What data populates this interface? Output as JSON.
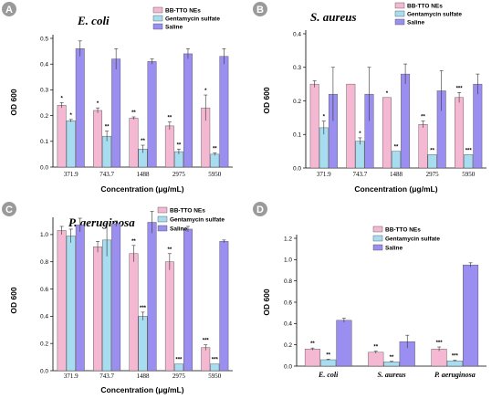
{
  "colors": {
    "series": [
      "#f5b8d2",
      "#a7dcf1",
      "#9a8ff0"
    ],
    "bar_stroke": "#444444",
    "letter_badge": "#9a9a9a"
  },
  "chart_data": [
    {
      "type": "bar",
      "panel_label": "A",
      "title": "E. coli",
      "xlabel": "Concentration (μg/mL)",
      "ylabel": "OD 600",
      "categories": [
        "371.9",
        "743.7",
        "1488",
        "2975",
        "5950"
      ],
      "ylim": [
        0,
        0.5
      ],
      "yticks": [
        "0.0",
        "0.1",
        "0.2",
        "0.3",
        "0.4",
        "0.5"
      ],
      "ytick_values": [
        0,
        0.1,
        0.2,
        0.3,
        0.4,
        0.5
      ],
      "legend_position": "top-right",
      "series": [
        {
          "name": "BB-TTO NEs",
          "values": [
            0.24,
            0.22,
            0.19,
            0.16,
            0.23
          ],
          "errors": [
            0.01,
            0.01,
            0.005,
            0.015,
            0.05
          ],
          "sig": [
            "*",
            "*",
            "**",
            "**",
            "*"
          ]
        },
        {
          "name": "Gentamycin sulfate",
          "values": [
            0.18,
            0.12,
            0.07,
            0.06,
            0.05
          ],
          "errors": [
            0.005,
            0.02,
            0.015,
            0.01,
            0.005
          ],
          "sig": [
            "*",
            "**",
            "**",
            "**",
            "**"
          ]
        },
        {
          "name": "Saline",
          "values": [
            0.46,
            0.42,
            0.41,
            0.44,
            0.43
          ],
          "errors": [
            0.03,
            0.04,
            0.01,
            0.02,
            0.03
          ],
          "sig": [
            "",
            "",
            "",
            "",
            ""
          ]
        }
      ]
    },
    {
      "type": "bar",
      "panel_label": "B",
      "title": "S. aureus",
      "xlabel": "Concentration (μg/mL)",
      "ylabel": "OD 600",
      "categories": [
        "371.9",
        "743.7",
        "1488",
        "2975",
        "5950"
      ],
      "ylim": [
        0,
        0.4
      ],
      "yticks": [
        "0.0",
        "0.1",
        "0.2",
        "0.3",
        "0.4"
      ],
      "ytick_values": [
        0,
        0.1,
        0.2,
        0.3,
        0.4
      ],
      "legend_position": "top-right",
      "series": [
        {
          "name": "BB-TTO NEs",
          "values": [
            0.25,
            0.25,
            0.21,
            0.13,
            0.21
          ],
          "errors": [
            0.01,
            0.0,
            0.0,
            0.01,
            0.015
          ],
          "sig": [
            "",
            "",
            "*",
            "**",
            "***"
          ]
        },
        {
          "name": "Gentamycin sulfate",
          "values": [
            0.12,
            0.08,
            0.05,
            0.04,
            0.04
          ],
          "errors": [
            0.02,
            0.01,
            0.0,
            0.0,
            0.0
          ],
          "sig": [
            "*",
            "*",
            "**",
            "**",
            "***"
          ]
        },
        {
          "name": "Saline",
          "values": [
            0.22,
            0.22,
            0.28,
            0.23,
            0.25
          ],
          "errors": [
            0.08,
            0.08,
            0.03,
            0.06,
            0.03
          ],
          "sig": [
            "",
            "",
            "",
            "",
            ""
          ]
        }
      ]
    },
    {
      "type": "bar",
      "panel_label": "C",
      "title": "P. aeruginosa",
      "xlabel": "Concentration (μg/mL)",
      "ylabel": "OD 600",
      "categories": [
        "371.9",
        "743.7",
        "1488",
        "2975",
        "5950"
      ],
      "ylim": [
        0,
        1.1
      ],
      "yticks": [
        "0.0",
        "0.2",
        "0.4",
        "0.6",
        "0.8",
        "1.0"
      ],
      "ytick_values": [
        0,
        0.2,
        0.4,
        0.6,
        0.8,
        1.0
      ],
      "legend_position": "top-right",
      "series": [
        {
          "name": "BB-TTO NEs",
          "values": [
            1.03,
            0.91,
            0.86,
            0.8,
            0.17
          ],
          "errors": [
            0.03,
            0.04,
            0.06,
            0.06,
            0.02
          ],
          "sig": [
            "",
            "",
            "**",
            "**",
            "***"
          ]
        },
        {
          "name": "Gentamycin sulfate",
          "values": [
            0.99,
            0.96,
            0.4,
            0.05,
            0.05
          ],
          "errors": [
            0.05,
            0.12,
            0.03,
            0.0,
            0.0
          ],
          "sig": [
            "",
            "",
            "***",
            "***",
            "***"
          ]
        },
        {
          "name": "Saline",
          "values": [
            1.07,
            1.08,
            1.09,
            1.04,
            0.95
          ],
          "errors": [
            0.05,
            0.02,
            0.08,
            0.02,
            0.01
          ],
          "sig": [
            "",
            "",
            "",
            "",
            ""
          ]
        }
      ]
    },
    {
      "type": "bar",
      "panel_label": "D",
      "title": "",
      "xlabel": "",
      "ylabel": "OD 600",
      "categories": [
        "E. coli",
        "S. aureus",
        "P. aeruginosa"
      ],
      "ylim": [
        0,
        1.2
      ],
      "yticks": [
        "0.0",
        "0.2",
        "0.4",
        "0.6",
        "0.8",
        "1.0",
        "1.2"
      ],
      "ytick_values": [
        0,
        0.2,
        0.4,
        0.6,
        0.8,
        1.0,
        1.2
      ],
      "legend_position": "top-left",
      "series": [
        {
          "name": "BB-TTO NEs",
          "values": [
            0.16,
            0.13,
            0.16
          ],
          "errors": [
            0.01,
            0.01,
            0.02
          ],
          "sig": [
            "**",
            "**",
            "***"
          ]
        },
        {
          "name": "Gentamycin sulfate",
          "values": [
            0.06,
            0.04,
            0.05
          ],
          "errors": [
            0.005,
            0.005,
            0.005
          ],
          "sig": [
            "**",
            "**",
            "***"
          ]
        },
        {
          "name": "Saline",
          "values": [
            0.43,
            0.23,
            0.95
          ],
          "errors": [
            0.02,
            0.06,
            0.02
          ],
          "sig": [
            "",
            "",
            ""
          ]
        }
      ]
    }
  ]
}
